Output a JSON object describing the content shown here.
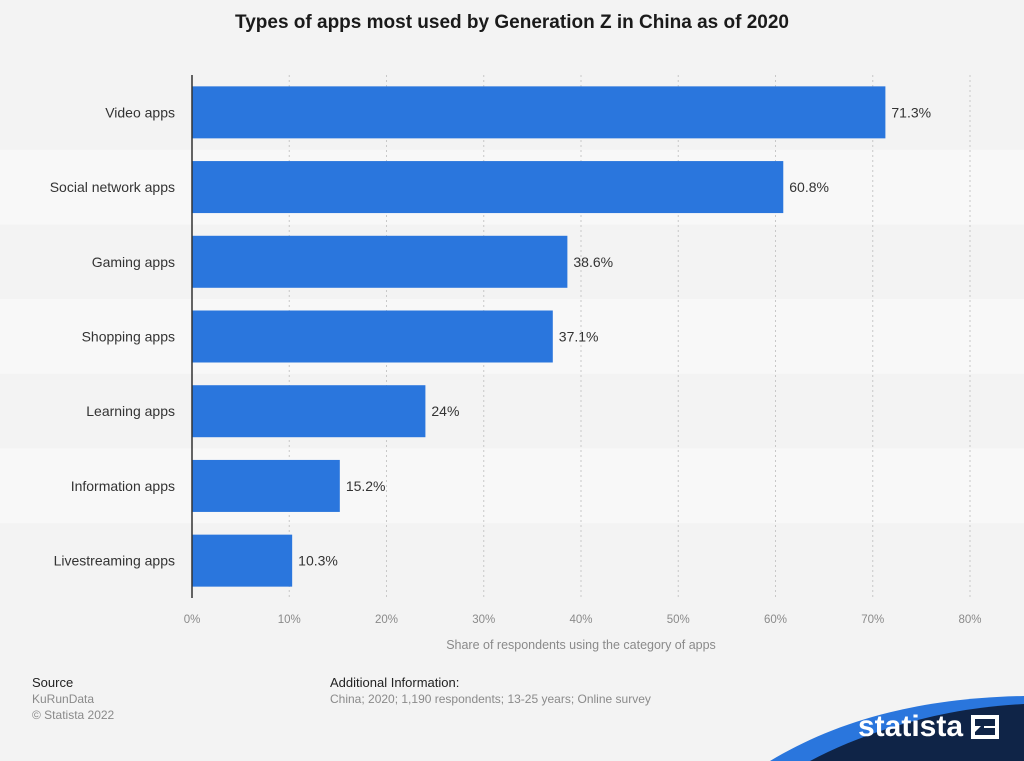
{
  "chart_data": {
    "type": "bar",
    "orientation": "horizontal",
    "title": "Types of apps most used by Generation Z in China as of 2020",
    "xlabel": "Share of respondents using the category of apps",
    "ylabel": "",
    "xlim": [
      0,
      80
    ],
    "ticks": [
      "0%",
      "10%",
      "20%",
      "30%",
      "40%",
      "50%",
      "60%",
      "70%",
      "80%"
    ],
    "tick_values": [
      0,
      10,
      20,
      30,
      40,
      50,
      60,
      70,
      80
    ],
    "categories": [
      "Video apps",
      "Social network apps",
      "Gaming apps",
      "Shopping apps",
      "Learning apps",
      "Information apps",
      "Livestreaming apps"
    ],
    "values": [
      71.3,
      60.8,
      38.6,
      37.1,
      24,
      15.2,
      10.3
    ],
    "value_labels": [
      "71.3%",
      "60.8%",
      "38.6%",
      "37.1%",
      "24%",
      "15.2%",
      "10.3%"
    ],
    "grid": true,
    "bar_color": "#2a76dd"
  },
  "footer": {
    "source_heading": "Source",
    "source_lines": [
      "KuRunData",
      "© Statista 2022"
    ],
    "info_heading": "Additional Information:",
    "info_text": "China; 2020; 1,190 respondents; 13-25 years; Online survey"
  },
  "brand": {
    "name": "statista",
    "bg_color": "#0f2447",
    "accent_color": "#2a76dd"
  }
}
